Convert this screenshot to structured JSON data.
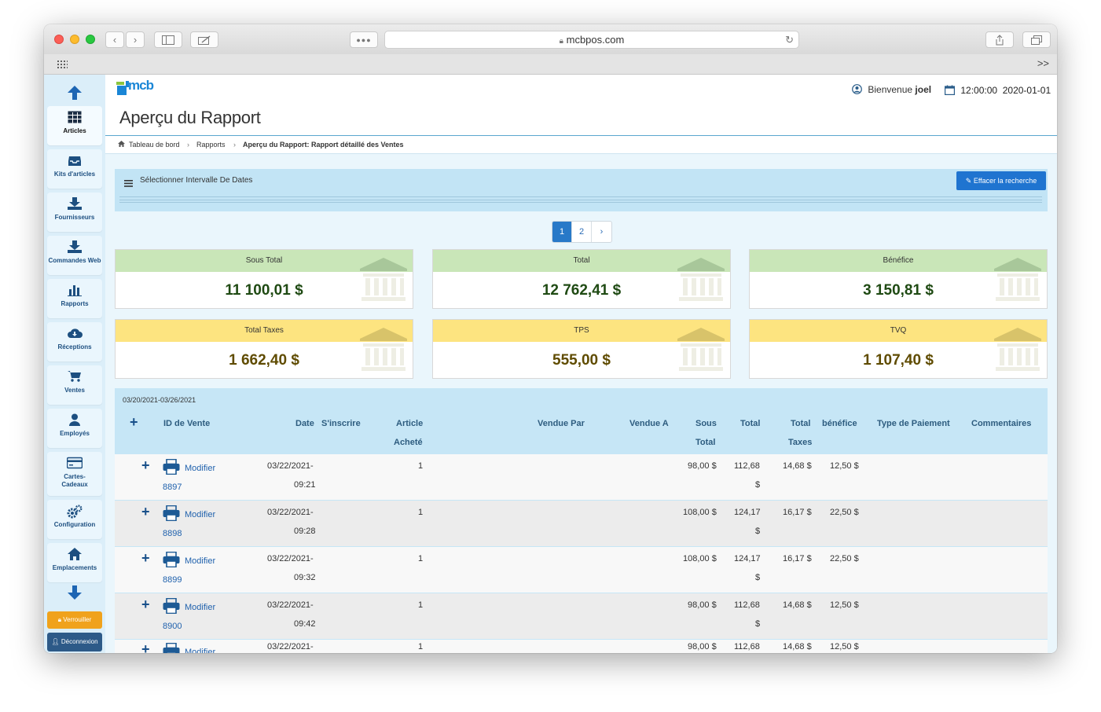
{
  "browser": {
    "url": "mcbpos.com"
  },
  "sidebar": {
    "items": [
      {
        "label": "Articles",
        "icon": "table-icon"
      },
      {
        "label": "Kits d'articles",
        "icon": "inbox-icon"
      },
      {
        "label": "Fournisseurs",
        "icon": "download-icon"
      },
      {
        "label": "Commandes Web",
        "icon": "download-icon"
      },
      {
        "label": "Rapports",
        "icon": "bar-chart-icon"
      },
      {
        "label": "Réceptions",
        "icon": "cloud-download-icon"
      },
      {
        "label": "Ventes",
        "icon": "cart-icon"
      },
      {
        "label": "Employés",
        "icon": "user-icon"
      },
      {
        "label": "Cartes-Cadeaux",
        "icon": "credit-card-icon"
      },
      {
        "label": "Configuration",
        "icon": "cogs-icon"
      },
      {
        "label": "Emplacements",
        "icon": "home-icon"
      }
    ],
    "lock_label": "Verrouiller",
    "logout_label": "Déconnexion"
  },
  "header": {
    "logo_text": "mcb",
    "welcome_prefix": "Bienvenue",
    "user": "joel",
    "time": "12:00:00",
    "date": "2020-01-01"
  },
  "page": {
    "title": "Aperçu du Rapport",
    "breadcrumb": [
      "Tableau de bord",
      "Rapports",
      "Aperçu du Rapport: Rapport détaillé des Ventes"
    ]
  },
  "filter": {
    "title": "Sélectionner Intervalle De Dates",
    "clear_label": "Effacer la recherche"
  },
  "pagination": {
    "pages": [
      "1",
      "2"
    ],
    "next": "›",
    "current": "1"
  },
  "summary": [
    {
      "label": "Sous Total",
      "value": "11 100,01 $",
      "color": "#c9e6b8"
    },
    {
      "label": "Total",
      "value": "12 762,41 $",
      "color": "#c9e6b8"
    },
    {
      "label": "Bénéfice",
      "value": "3 150,81 $",
      "color": "#c9e6b8"
    },
    {
      "label": "Total Taxes",
      "value": "1 662,40 $",
      "color": "#fde480"
    },
    {
      "label": "TPS",
      "value": "555,00 $",
      "color": "#fde480"
    },
    {
      "label": "TVQ",
      "value": "1 107,40 $",
      "color": "#fde480"
    }
  ],
  "table": {
    "date_range": "03/20/2021-03/26/2021",
    "columns": {
      "id": "ID de Vente",
      "date": "Date",
      "register": "S'inscrire",
      "items_line1": "Article",
      "items_line2": "Acheté",
      "sold_by": "Vendue Par",
      "sold_to": "Vendue A",
      "subtotal_line1": "Sous",
      "subtotal_line2": "Total",
      "total": "Total",
      "taxes_line1": "Total",
      "taxes_line2": "Taxes",
      "profit": "bénéfice",
      "payment": "Type de Paiement",
      "comments": "Commentaires"
    },
    "edit_label": "Modifier",
    "rows": [
      {
        "id": "8897",
        "date1": "03/22/2021-",
        "date2": "09:21",
        "items": "1",
        "subtotal": "98,00 $",
        "total1": "112,68",
        "total2": "$",
        "taxes": "14,68 $",
        "profit": "12,50 $"
      },
      {
        "id": "8898",
        "date1": "03/22/2021-",
        "date2": "09:28",
        "items": "1",
        "subtotal": "108,00 $",
        "total1": "124,17",
        "total2": "$",
        "taxes": "16,17 $",
        "profit": "22,50 $"
      },
      {
        "id": "8899",
        "date1": "03/22/2021-",
        "date2": "09:32",
        "items": "1",
        "subtotal": "108,00 $",
        "total1": "124,17",
        "total2": "$",
        "taxes": "16,17 $",
        "profit": "22,50 $"
      },
      {
        "id": "8900",
        "date1": "03/22/2021-",
        "date2": "09:42",
        "items": "1",
        "subtotal": "98,00 $",
        "total1": "112,68",
        "total2": "$",
        "taxes": "14,68 $",
        "profit": "12,50 $"
      },
      {
        "id": "",
        "date1": "03/22/2021-",
        "date2": "",
        "items": "1",
        "subtotal": "98,00 $",
        "total1": "112,68",
        "total2": "",
        "taxes": "14,68 $",
        "profit": "12,50 $"
      }
    ]
  }
}
